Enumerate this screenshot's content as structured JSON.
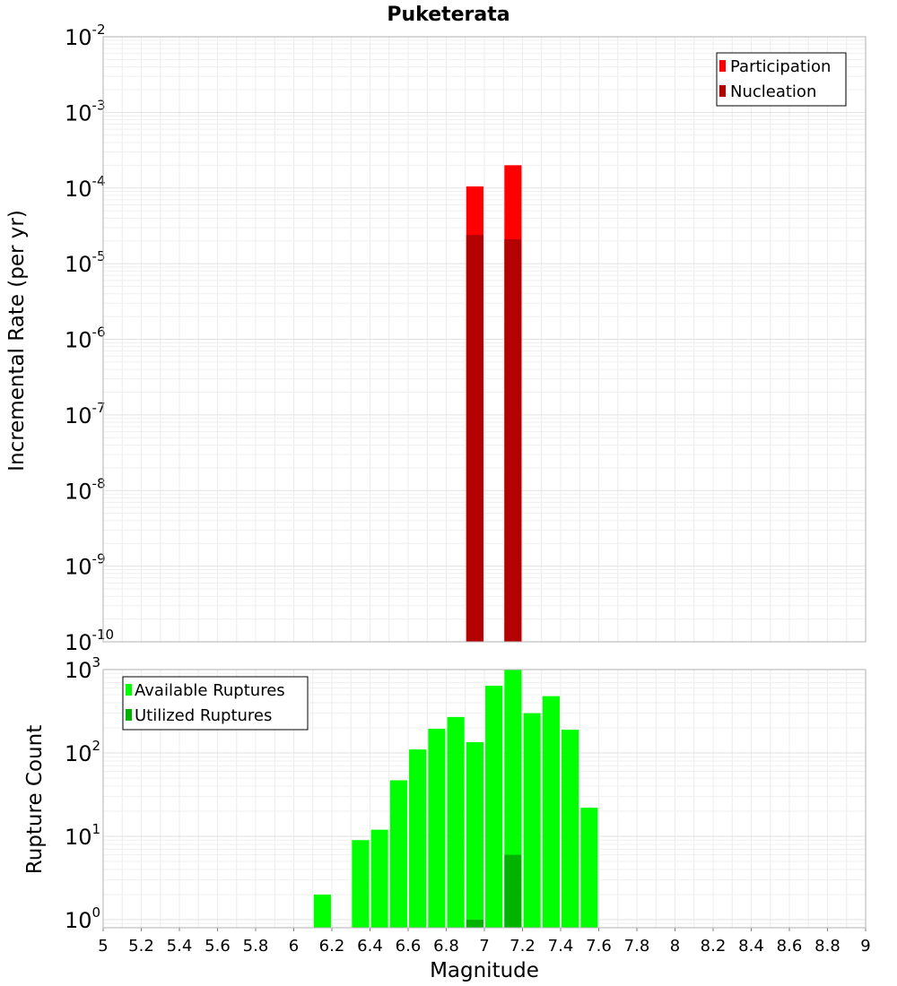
{
  "chart_data": [
    {
      "type": "bar",
      "title": "Puketerata",
      "ylabel": "Incremental Rate (per yr)",
      "xlabel": "",
      "yscale": "log",
      "ylim": [
        1e-10,
        0.01
      ],
      "xlim": [
        5,
        9
      ],
      "y_tick_labels": [
        {
          "base": "10",
          "exp": "-10",
          "value": 1e-10
        },
        {
          "base": "10",
          "exp": "-9",
          "value": 1e-09
        },
        {
          "base": "10",
          "exp": "-8",
          "value": 1e-08
        },
        {
          "base": "10",
          "exp": "-7",
          "value": 1e-07
        },
        {
          "base": "10",
          "exp": "-6",
          "value": 1e-06
        },
        {
          "base": "10",
          "exp": "-5",
          "value": 1e-05
        },
        {
          "base": "10",
          "exp": "-4",
          "value": 0.0001
        },
        {
          "base": "10",
          "exp": "-3",
          "value": 0.001
        },
        {
          "base": "10",
          "exp": "-2",
          "value": 0.01
        }
      ],
      "grid": true,
      "legend_position": "top-right",
      "bar_width": 0.09,
      "series": [
        {
          "name": "Participation",
          "color": "#ff0000",
          "x": [
            6.95,
            7.15
          ],
          "values": [
            0.000105,
            0.0002
          ]
        },
        {
          "name": "Nucleation",
          "color": "#b30000",
          "x": [
            6.95,
            7.15
          ],
          "values": [
            2.4e-05,
            2.1e-05
          ]
        }
      ]
    },
    {
      "type": "bar",
      "title": "",
      "ylabel": "Rupture Count",
      "xlabel": "Magnitude",
      "yscale": "log",
      "ylim": [
        0.8,
        1000
      ],
      "xlim": [
        5,
        9
      ],
      "x_tick_labels": [
        "5",
        "5.2",
        "5.4",
        "5.6",
        "5.8",
        "6",
        "6.2",
        "6.4",
        "6.6",
        "6.8",
        "7",
        "7.2",
        "7.4",
        "7.6",
        "7.8",
        "8",
        "8.2",
        "8.4",
        "8.6",
        "8.8",
        "9"
      ],
      "y_tick_labels": [
        {
          "base": "10",
          "exp": "0",
          "value": 1
        },
        {
          "base": "10",
          "exp": "1",
          "value": 10
        },
        {
          "base": "10",
          "exp": "2",
          "value": 100
        },
        {
          "base": "10",
          "exp": "3",
          "value": 1000
        }
      ],
      "grid": true,
      "legend_position": "top-left",
      "bar_width": 0.09,
      "series": [
        {
          "name": "Available Ruptures",
          "color": "#00ff00",
          "x": [
            6.15,
            6.35,
            6.45,
            6.55,
            6.65,
            6.75,
            6.85,
            6.95,
            7.05,
            7.15,
            7.25,
            7.35,
            7.45,
            7.55
          ],
          "values": [
            2,
            9,
            12,
            47,
            110,
            195,
            270,
            135,
            640,
            1000,
            300,
            480,
            190,
            22
          ]
        },
        {
          "name": "Utilized Ruptures",
          "color": "#00b300",
          "x": [
            6.95,
            7.15
          ],
          "values": [
            1,
            6
          ]
        }
      ]
    }
  ]
}
